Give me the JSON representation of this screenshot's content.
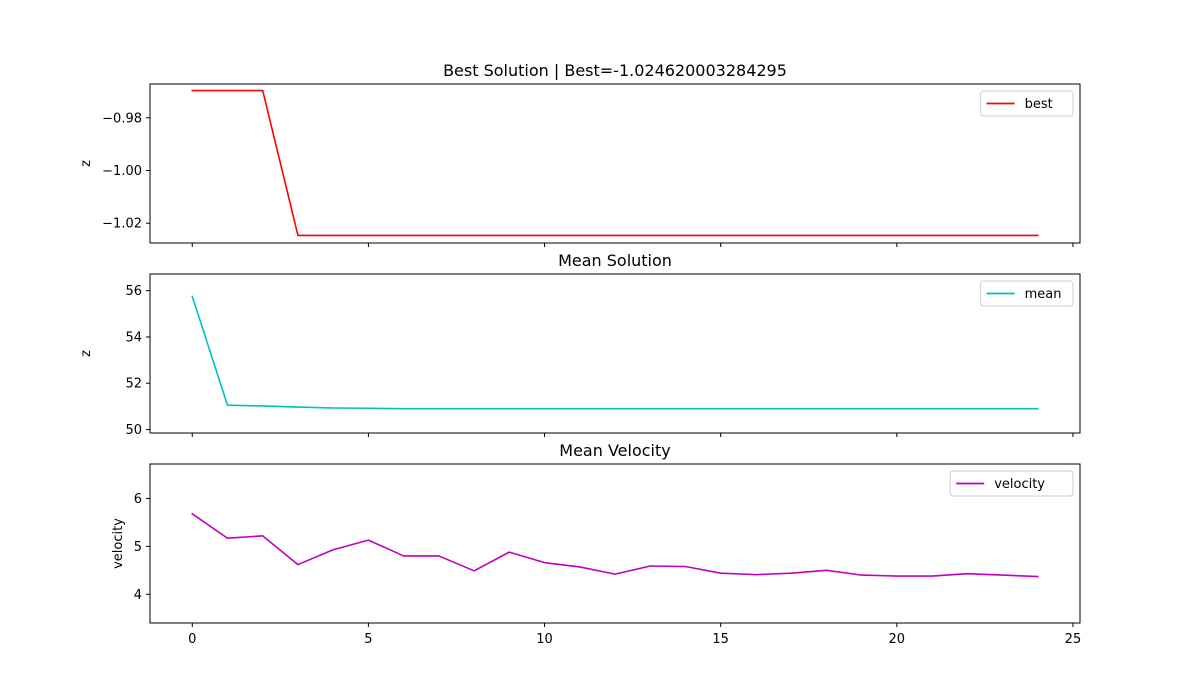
{
  "chart_data": [
    {
      "type": "line",
      "title": "Best Solution | Best=-1.024620003284295",
      "xlabel": "",
      "ylabel": "z",
      "xlim": [
        -1.2,
        25.2
      ],
      "ylim": [
        -1.0275,
        -0.9672
      ],
      "xticks": [
        0,
        5,
        10,
        15,
        20,
        25
      ],
      "show_xtick_labels": false,
      "yticks": [
        -0.98,
        -1.0,
        -1.02
      ],
      "ytick_labels": [
        "−0.98",
        "−1.00",
        "−1.02"
      ],
      "grid": false,
      "legend_position": "top-right",
      "series": [
        {
          "name": "best",
          "color": "#ff0000",
          "x": [
            0,
            1,
            2,
            3,
            4,
            5,
            6,
            7,
            8,
            9,
            10,
            11,
            12,
            13,
            14,
            15,
            16,
            17,
            18,
            19,
            20,
            21,
            22,
            23,
            24
          ],
          "values": [
            -0.9697,
            -0.9697,
            -0.9697,
            -1.02462,
            -1.02462,
            -1.02462,
            -1.02462,
            -1.02462,
            -1.02462,
            -1.02462,
            -1.02462,
            -1.02462,
            -1.02462,
            -1.02462,
            -1.02462,
            -1.02462,
            -1.02462,
            -1.02462,
            -1.02462,
            -1.02462,
            -1.02462,
            -1.02462,
            -1.02462,
            -1.02462,
            -1.02462
          ]
        }
      ]
    },
    {
      "type": "line",
      "title": "Mean Solution",
      "xlabel": "",
      "ylabel": "z",
      "xlim": [
        -1.2,
        25.2
      ],
      "ylim": [
        49.85,
        56.72
      ],
      "xticks": [
        0,
        5,
        10,
        15,
        20,
        25
      ],
      "show_xtick_labels": false,
      "yticks": [
        50,
        52,
        54,
        56
      ],
      "ytick_labels": [
        "50",
        "52",
        "54",
        "56"
      ],
      "grid": false,
      "legend_position": "top-right",
      "series": [
        {
          "name": "mean",
          "color": "#00bfbf",
          "x": [
            0,
            1,
            2,
            3,
            4,
            5,
            6,
            7,
            8,
            9,
            10,
            11,
            12,
            13,
            14,
            15,
            16,
            17,
            18,
            19,
            20,
            21,
            22,
            23,
            24
          ],
          "values": [
            55.75,
            51.05,
            51.02,
            50.97,
            50.93,
            50.92,
            50.9,
            50.9,
            50.9,
            50.9,
            50.9,
            50.9,
            50.9,
            50.9,
            50.9,
            50.9,
            50.9,
            50.9,
            50.9,
            50.9,
            50.9,
            50.9,
            50.9,
            50.9,
            50.9
          ]
        }
      ]
    },
    {
      "type": "line",
      "title": "Mean Velocity",
      "xlabel": "",
      "ylabel": "velocity",
      "xlim": [
        -1.2,
        25.2
      ],
      "ylim": [
        3.4,
        6.72
      ],
      "xticks": [
        0,
        5,
        10,
        15,
        20,
        25
      ],
      "show_xtick_labels": true,
      "xtick_labels": [
        "0",
        "5",
        "10",
        "15",
        "20",
        "25"
      ],
      "yticks": [
        4,
        5,
        6
      ],
      "ytick_labels": [
        "4",
        "5",
        "6"
      ],
      "grid": false,
      "legend_position": "top-right",
      "series": [
        {
          "name": "velocity",
          "color": "#bf00bf",
          "x": [
            0,
            1,
            2,
            3,
            4,
            5,
            6,
            7,
            8,
            9,
            10,
            11,
            12,
            13,
            14,
            15,
            16,
            17,
            18,
            19,
            20,
            21,
            22,
            23,
            24
          ],
          "values": [
            5.68,
            5.17,
            5.22,
            4.62,
            4.93,
            5.13,
            4.8,
            4.8,
            4.49,
            4.88,
            4.66,
            4.57,
            4.42,
            4.59,
            4.58,
            4.44,
            4.41,
            4.44,
            4.5,
            4.4,
            4.38,
            4.38,
            4.43,
            4.4,
            4.37
          ]
        }
      ]
    }
  ]
}
